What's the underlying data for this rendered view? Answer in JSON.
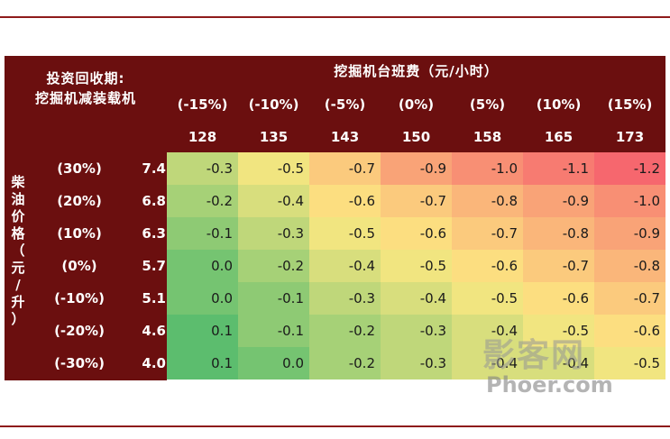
{
  "corner": {
    "line1": "投资回收期:",
    "line2": "挖掘机减装载机"
  },
  "column_header": "挖掘机台班费（元/小时）",
  "row_header_chars": [
    "柴",
    "油",
    "价",
    "格",
    "（",
    "元",
    "/",
    "升",
    "）"
  ],
  "columns": [
    {
      "pct": "(-15%)",
      "value": "128"
    },
    {
      "pct": "(-10%)",
      "value": "135"
    },
    {
      "pct": "(-5%)",
      "value": "143"
    },
    {
      "pct": "(0%)",
      "value": "150"
    },
    {
      "pct": "(5%)",
      "value": "158"
    },
    {
      "pct": "(10%)",
      "value": "165"
    },
    {
      "pct": "(15%)",
      "value": "173"
    }
  ],
  "rows": [
    {
      "pct": "(30%)",
      "value": "7.4",
      "cells": [
        "-0.3",
        "-0.5",
        "-0.7",
        "-0.9",
        "-1.0",
        "-1.1",
        "-1.2"
      ]
    },
    {
      "pct": "(20%)",
      "value": "6.8",
      "cells": [
        "-0.2",
        "-0.4",
        "-0.6",
        "-0.7",
        "-0.8",
        "-0.9",
        "-1.0"
      ]
    },
    {
      "pct": "(10%)",
      "value": "6.3",
      "cells": [
        "-0.1",
        "-0.3",
        "-0.5",
        "-0.6",
        "-0.7",
        "-0.8",
        "-0.9"
      ]
    },
    {
      "pct": "(0%)",
      "value": "5.7",
      "cells": [
        "0.0",
        "-0.2",
        "-0.4",
        "-0.5",
        "-0.6",
        "-0.7",
        "-0.8"
      ]
    },
    {
      "pct": "(-10%)",
      "value": "5.1",
      "cells": [
        "0.0",
        "-0.1",
        "-0.3",
        "-0.4",
        "-0.5",
        "-0.6",
        "-0.7"
      ]
    },
    {
      "pct": "(-20%)",
      "value": "4.6",
      "cells": [
        "0.1",
        "-0.1",
        "-0.2",
        "-0.3",
        "-0.4",
        "-0.5",
        "-0.6"
      ]
    },
    {
      "pct": "(-30%)",
      "value": "4.0",
      "cells": [
        "0.1",
        "0.0",
        "-0.2",
        "-0.3",
        "-0.4",
        "-0.4",
        "-0.5"
      ]
    }
  ],
  "watermark": {
    "cn": "影客网",
    "en": "Phoer.com"
  },
  "colors": {
    "maroon": "#6b0f0f",
    "scale_high": "#5cbd6e",
    "scale_mid": "#fde882",
    "scale_low": "#f6676e"
  }
}
